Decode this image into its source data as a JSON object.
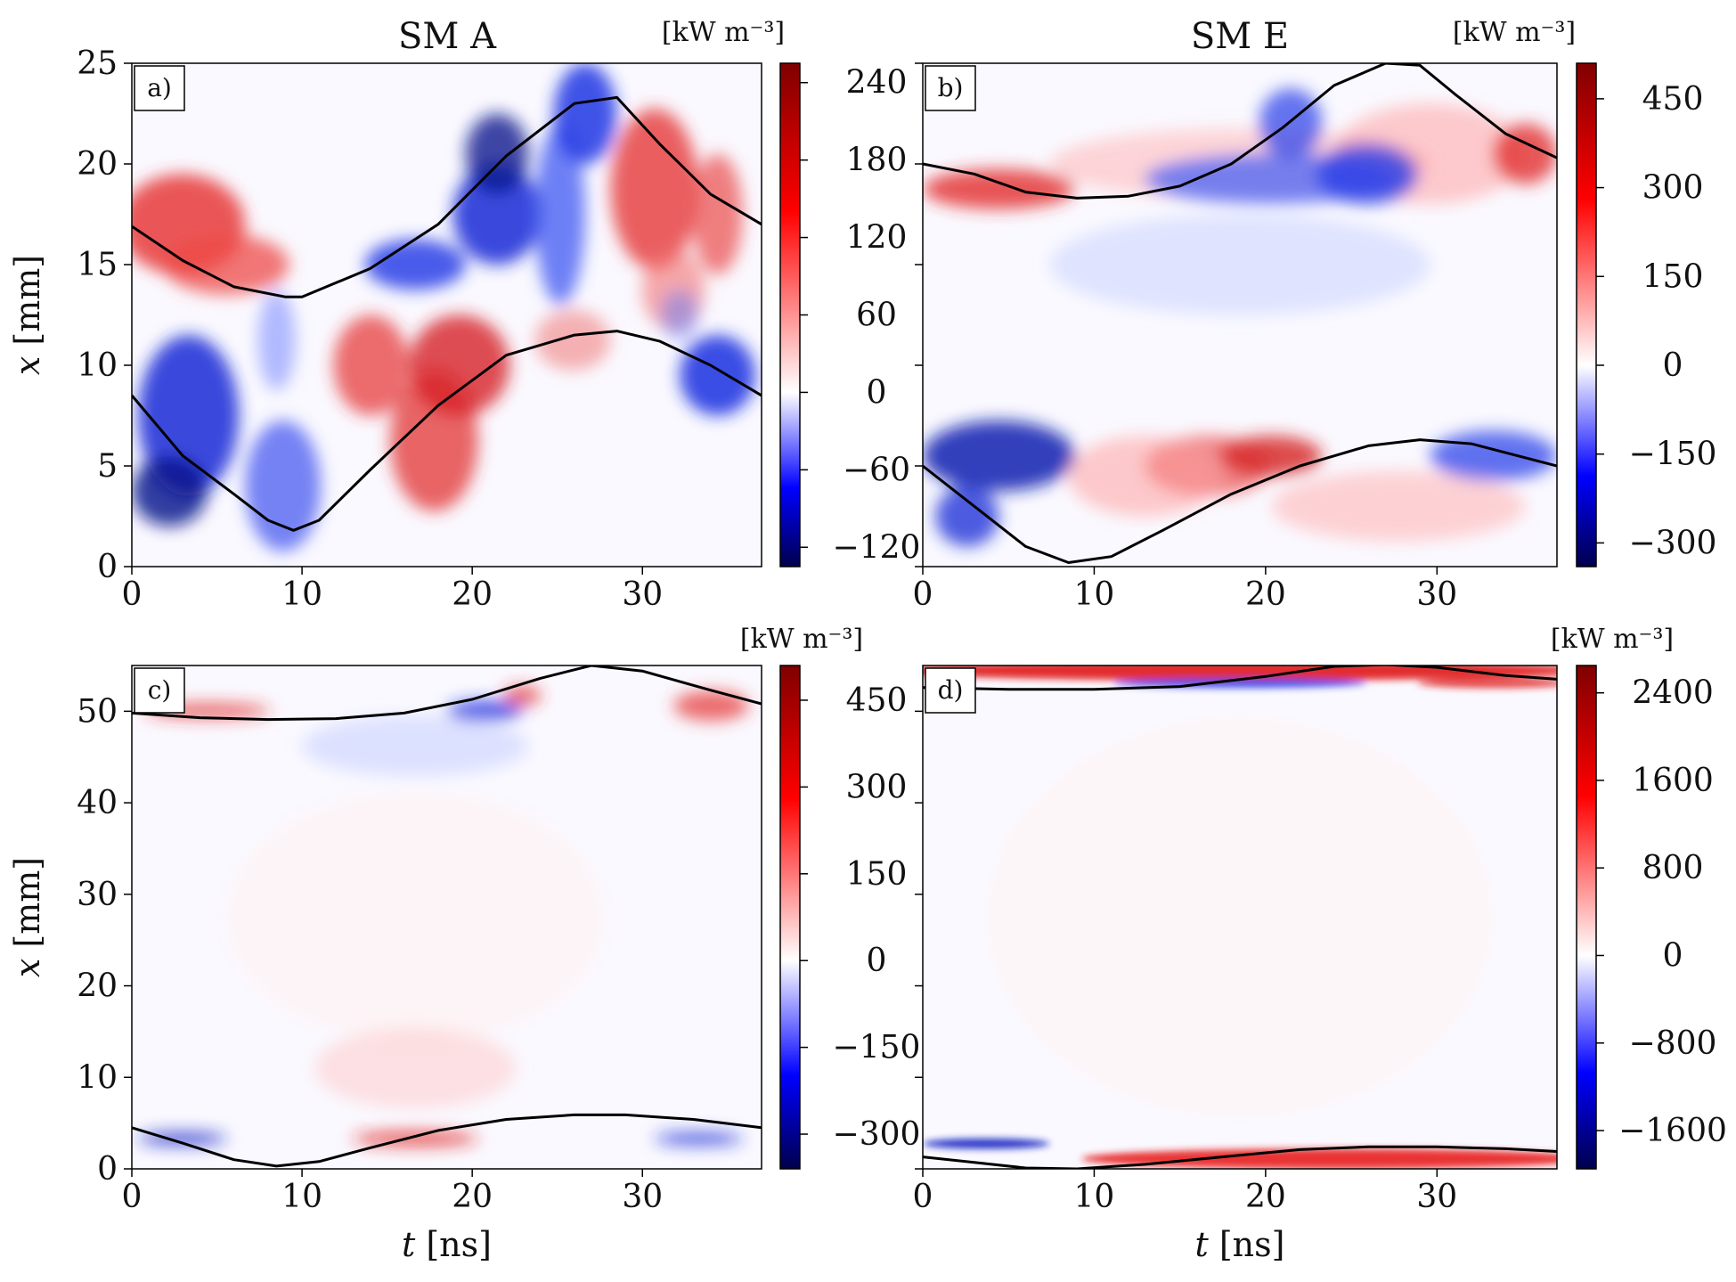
{
  "chart_data": [
    {
      "id": "a",
      "type": "heatmap",
      "title": "SM A",
      "panel_label": "a)",
      "xlabel": "",
      "ylabel": "x [mm]",
      "xlim": [
        0,
        37
      ],
      "ylim": [
        0,
        25
      ],
      "xticks": [
        "0",
        "10",
        "20",
        "30"
      ],
      "yticks": [
        "0",
        "5",
        "10",
        "15",
        "20",
        "25"
      ],
      "colorbar": {
        "label": "[kW m⁻³]",
        "range": [
          -135,
          255
        ],
        "ticks": [
          "−120",
          "−60",
          "0",
          "60",
          "120",
          "180",
          "240"
        ],
        "tick_values": [
          -120,
          -60,
          0,
          60,
          120,
          180,
          240
        ]
      },
      "boundary_lines": {
        "upper": {
          "t": [
            0,
            3,
            6,
            9,
            10,
            14,
            18,
            22,
            26,
            28.5,
            31,
            34,
            37
          ],
          "x": [
            16.9,
            15.2,
            13.9,
            13.4,
            13.4,
            14.8,
            17.0,
            20.4,
            23.0,
            23.3,
            21.0,
            18.5,
            17.0
          ]
        },
        "lower": {
          "t": [
            0,
            3,
            6,
            8,
            9.5,
            11,
            14,
            18,
            22,
            26,
            28.5,
            31,
            34,
            37
          ],
          "x": [
            8.5,
            5.5,
            3.6,
            2.3,
            1.8,
            2.3,
            4.8,
            8.0,
            10.5,
            11.5,
            11.7,
            11.2,
            10.0,
            8.5
          ]
        }
      }
    },
    {
      "id": "b",
      "type": "heatmap",
      "title": "SM E",
      "panel_label": "b)",
      "xlabel": "",
      "ylabel": "",
      "xlim": [
        0,
        37
      ],
      "ylim": [
        0,
        25
      ],
      "xticks": [
        "0",
        "10",
        "20",
        "30"
      ],
      "yticks": [],
      "colorbar": {
        "label": "[kW m⁻³]",
        "range": [
          -340,
          510
        ],
        "ticks": [
          "−300",
          "−150",
          "0",
          "150",
          "300",
          "450"
        ],
        "tick_values": [
          -300,
          -150,
          0,
          150,
          300,
          450
        ]
      },
      "boundary_lines": {
        "upper": {
          "t": [
            0,
            3,
            6,
            9,
            12,
            15,
            18,
            21,
            24,
            27,
            29,
            31,
            34,
            37
          ],
          "x": [
            20.0,
            19.5,
            18.6,
            18.3,
            18.4,
            18.9,
            20.0,
            21.8,
            23.9,
            25.0,
            24.9,
            23.5,
            21.5,
            20.3
          ]
        },
        "lower": {
          "t": [
            0,
            3,
            6,
            8.5,
            11,
            14,
            18,
            22,
            26,
            29,
            32,
            37
          ],
          "x": [
            5.0,
            3.0,
            1.0,
            0.2,
            0.5,
            1.8,
            3.6,
            5.0,
            6.0,
            6.3,
            6.1,
            5.0
          ]
        }
      }
    },
    {
      "id": "c",
      "type": "heatmap",
      "title": "",
      "panel_label": "c)",
      "xlabel": "t [ns]",
      "ylabel": "x [mm]",
      "xlim": [
        0,
        37
      ],
      "ylim": [
        0,
        55
      ],
      "xticks": [
        "0",
        "10",
        "20",
        "30"
      ],
      "yticks": [
        "0",
        "10",
        "20",
        "30",
        "40",
        "50"
      ],
      "colorbar": {
        "label": "[kW m⁻³]",
        "range": [
          -360,
          510
        ],
        "ticks": [
          "−300",
          "−150",
          "0",
          "150",
          "300",
          "450"
        ],
        "tick_values": [
          -300,
          -150,
          0,
          150,
          300,
          450
        ]
      },
      "boundary_lines": {
        "upper": {
          "t": [
            0,
            4,
            8,
            12,
            16,
            20,
            24,
            27,
            30,
            34,
            37
          ],
          "x": [
            49.8,
            49.3,
            49.1,
            49.2,
            49.8,
            51.3,
            53.6,
            55.0,
            54.4,
            52.3,
            50.8
          ]
        },
        "lower": {
          "t": [
            0,
            3,
            6,
            8.5,
            11,
            14,
            18,
            22,
            26,
            29,
            33,
            37
          ],
          "x": [
            4.5,
            2.8,
            1.0,
            0.3,
            0.8,
            2.3,
            4.2,
            5.4,
            5.9,
            5.9,
            5.4,
            4.5
          ]
        }
      }
    },
    {
      "id": "d",
      "type": "heatmap",
      "title": "",
      "panel_label": "d)",
      "xlabel": "t [ns]",
      "ylabel": "",
      "xlim": [
        0,
        37
      ],
      "ylim": [
        0,
        55
      ],
      "xticks": [
        "0",
        "10",
        "20",
        "30"
      ],
      "yticks": [],
      "colorbar": {
        "label": "[kW m⁻³]",
        "range": [
          -1950,
          2650
        ],
        "ticks": [
          "−1600",
          "−800",
          "0",
          "800",
          "1600",
          "2400"
        ],
        "tick_values": [
          -1600,
          -800,
          0,
          800,
          1600,
          2400
        ]
      },
      "boundary_lines": {
        "upper": {
          "t": [
            0,
            5,
            10,
            15,
            20,
            24,
            27,
            30,
            34,
            37
          ],
          "x": [
            52.6,
            52.4,
            52.4,
            52.7,
            53.8,
            54.9,
            55.1,
            54.8,
            53.9,
            53.5
          ]
        },
        "lower": {
          "t": [
            0,
            3,
            6,
            9,
            13,
            18,
            22,
            26,
            30,
            34,
            37
          ],
          "x": [
            1.3,
            0.7,
            0.1,
            0.0,
            0.5,
            1.4,
            2.1,
            2.4,
            2.4,
            2.2,
            1.9
          ]
        }
      }
    }
  ]
}
